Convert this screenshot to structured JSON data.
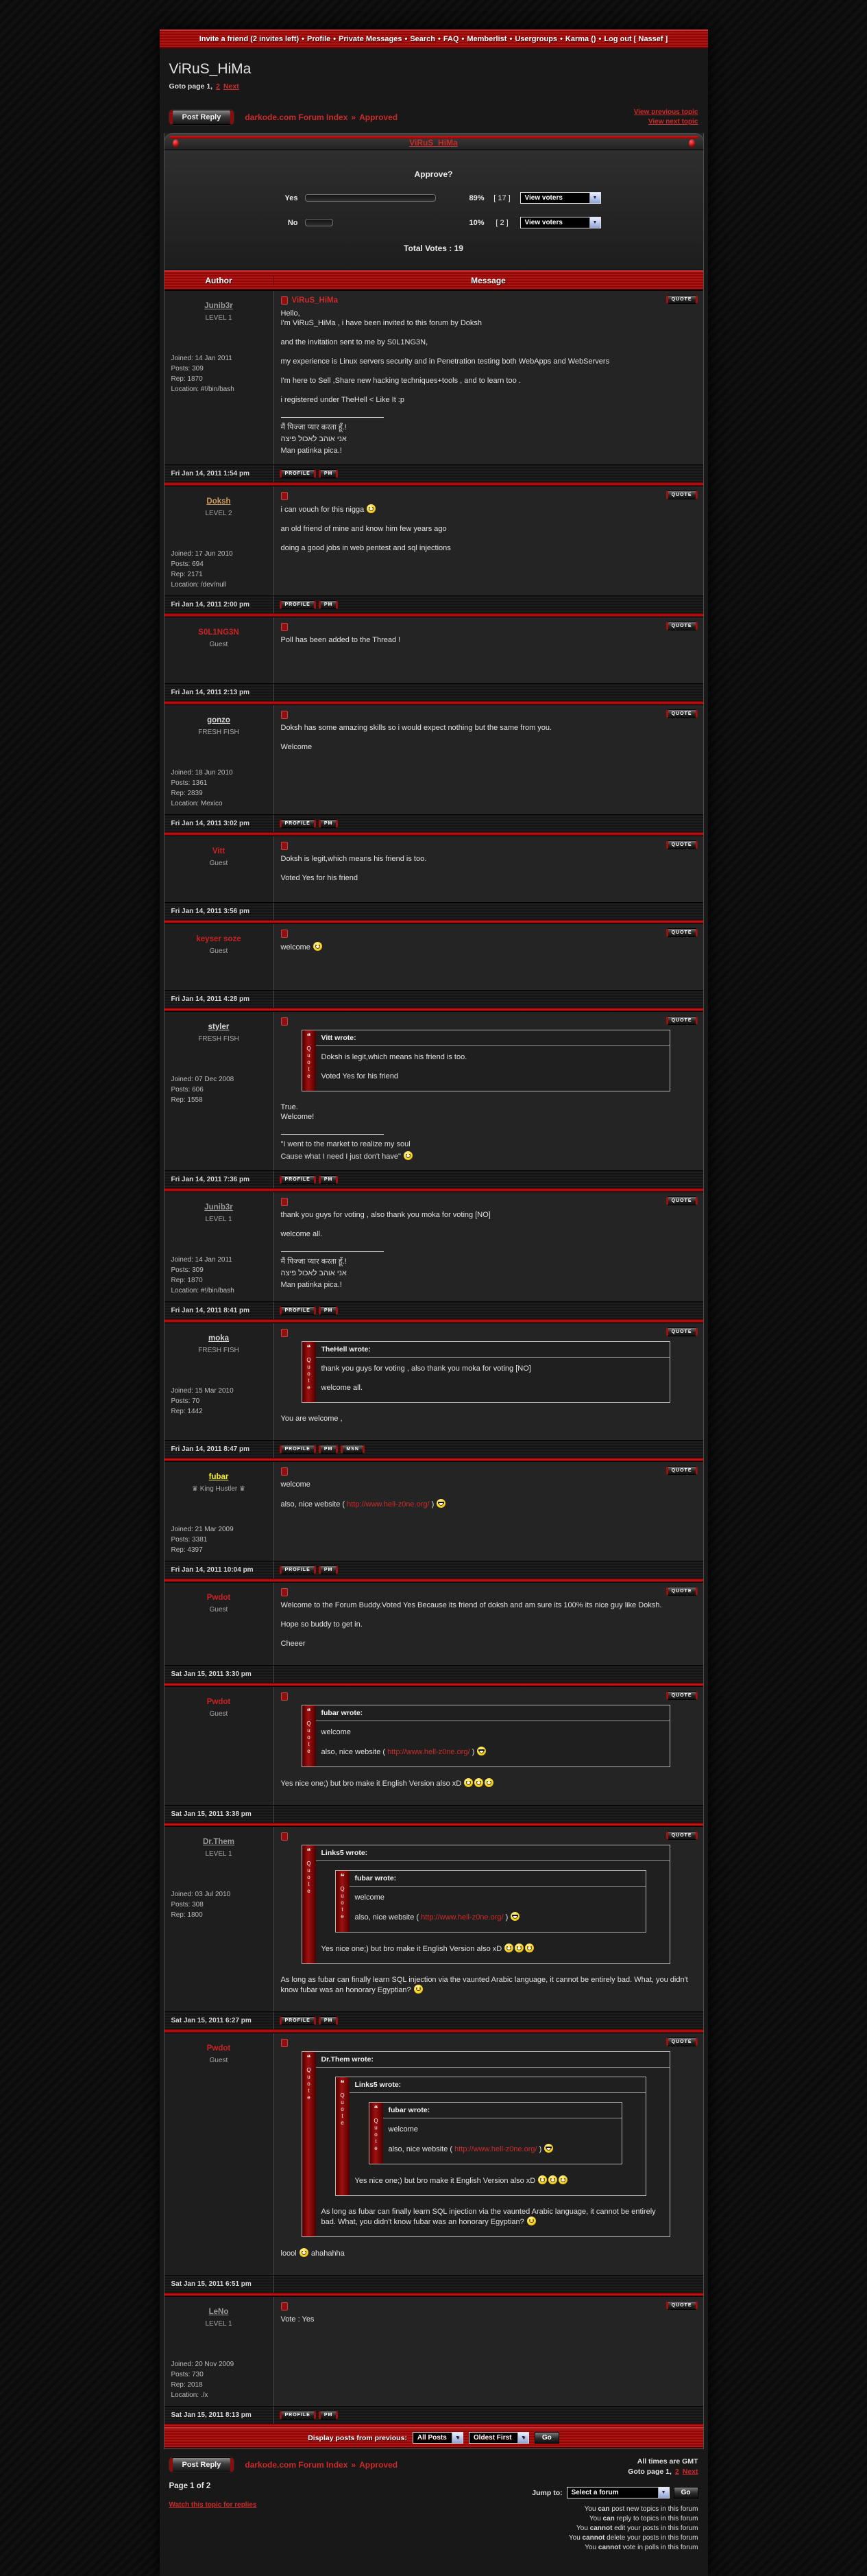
{
  "topnav": {
    "items": [
      "Invite a friend (2 invites left)",
      "Profile",
      "Private Messages",
      "Search",
      "FAQ",
      "Memberlist",
      "Usergroups",
      "Karma ()",
      "Log out [ Nassef ]"
    ],
    "separator": "•"
  },
  "page": {
    "title": "ViRuS_HiMa",
    "goto": {
      "label": "Goto page 1,",
      "links": [
        "2",
        "Next"
      ]
    }
  },
  "toolbar": {
    "post_reply": "Post Reply",
    "breadcrumb": [
      "darkode.com Forum Index",
      "Approved"
    ],
    "breadcrumb_separator": "»",
    "view_prev": "View previous topic",
    "view_next": "View next topic"
  },
  "topic": {
    "title": "ViRuS_HiMa"
  },
  "poll": {
    "question": "Approve?",
    "view_voters": "View voters",
    "total": "Total Votes : 19",
    "options": [
      {
        "label": "Yes",
        "pct": 89,
        "votes": 17
      },
      {
        "label": "No",
        "pct": 10,
        "votes": 2
      }
    ]
  },
  "table": {
    "author_header": "Author",
    "message_header": "Message"
  },
  "buttons": {
    "quote": "QUOTE",
    "profile": "PROFILE",
    "pm": "PM",
    "msn": "MSN"
  },
  "colors": {
    "accent_red": "#cc2b2b",
    "bar_red": "#a01010",
    "member_gray": "#9a9a9a",
    "guest_red": "#cc2222",
    "doksh_tan": "#c99a5b",
    "fubar_yellow": "#f5ef2f",
    "light_member": "#d8d8d8"
  },
  "posts": [
    {
      "author": {
        "name": "Junib3r",
        "color": "#9a9a9a",
        "underline": true,
        "rank": "LEVEL 1",
        "stats": [
          "Joined: 14 Jan 2011",
          "Posts: 309",
          "Rep: 1870",
          "Location: #!/bin/bash"
        ]
      },
      "subject": "ViRuS_HiMa",
      "content": [
        {
          "t": "p",
          "tight": true,
          "s": [
            {
              "x": "Hello,"
            }
          ]
        },
        {
          "t": "p",
          "s": [
            {
              "x": "I'm ViRuS_HiMa , i have been invited to this forum by Doksh"
            }
          ]
        },
        {
          "t": "p",
          "s": [
            {
              "x": "and the invitation sent to me by S0L1NG3N,"
            }
          ]
        },
        {
          "t": "p",
          "s": [
            {
              "x": "my experience is Linux servers security and in Penetration testing both WebApps and WebServers"
            }
          ]
        },
        {
          "t": "p",
          "s": [
            {
              "x": "I'm here to Sell ,Share new hacking techniques+tools , and to learn too ."
            }
          ]
        },
        {
          "t": "p",
          "s": [
            {
              "x": "i registered under TheHell < Like It :p"
            }
          ]
        },
        {
          "t": "sig",
          "lines": [
            [
              {
                "x": "मैं पिज्जा प्यार करता हूँ.!"
              }
            ],
            [
              {
                "x": "אני אוהב לאכול פיצה"
              }
            ],
            [
              {
                "x": "Man patinka pica.!"
              }
            ]
          ]
        }
      ],
      "time": "Fri Jan 14, 2011 1:54 pm",
      "buttons": [
        "profile",
        "pm"
      ]
    },
    {
      "author": {
        "name": "Doksh",
        "color": "#c99a5b",
        "underline": true,
        "rank": "LEVEL 2",
        "stats": [
          "Joined: 17 Jun 2010",
          "Posts: 694",
          "Rep: 2171",
          "Location: /dev/null"
        ]
      },
      "content": [
        {
          "t": "p",
          "s": [
            {
              "x": "i can vouch for this nigga "
            },
            {
              "s": "grin"
            }
          ]
        },
        {
          "t": "p",
          "s": [
            {
              "x": "an old friend of mine and know him few years ago"
            }
          ]
        },
        {
          "t": "p",
          "s": [
            {
              "x": "doing a good jobs in web pentest and sql injections"
            }
          ]
        }
      ],
      "time": "Fri Jan 14, 2011 2:00 pm",
      "buttons": [
        "profile",
        "pm"
      ]
    },
    {
      "author": {
        "name": "S0L1NG3N",
        "color": "#cc2222",
        "underline": false,
        "rank": "Guest"
      },
      "content": [
        {
          "t": "p",
          "s": [
            {
              "x": "Poll has been added to the Thread !"
            }
          ]
        }
      ],
      "time": "Fri Jan 14, 2011 2:13 pm",
      "buttons": []
    },
    {
      "author": {
        "name": "gonzo",
        "color": "#d8d8d8",
        "underline": true,
        "rank": "FRESH FISH",
        "stats": [
          "Joined: 18 Jun 2010",
          "Posts: 1361",
          "Rep: 2839",
          "Location: Mexico"
        ]
      },
      "content": [
        {
          "t": "p",
          "s": [
            {
              "x": "Doksh has some amazing skills so i would expect nothing but the same from you."
            }
          ]
        },
        {
          "t": "p",
          "s": [
            {
              "x": "Welcome"
            }
          ]
        }
      ],
      "time": "Fri Jan 14, 2011 3:02 pm",
      "buttons": [
        "profile",
        "pm"
      ]
    },
    {
      "author": {
        "name": "Vitt",
        "color": "#cc2222",
        "underline": false,
        "rank": "Guest"
      },
      "content": [
        {
          "t": "p",
          "s": [
            {
              "x": "Doksh is legit,which means his friend is too."
            }
          ]
        },
        {
          "t": "p",
          "s": [
            {
              "x": "Voted Yes for his friend"
            }
          ]
        }
      ],
      "time": "Fri Jan 14, 2011 3:56 pm",
      "buttons": []
    },
    {
      "author": {
        "name": "keyser soze",
        "color": "#cc2222",
        "underline": false,
        "rank": "Guest"
      },
      "content": [
        {
          "t": "p",
          "s": [
            {
              "x": "welcome "
            },
            {
              "s": "grin"
            }
          ]
        }
      ],
      "time": "Fri Jan 14, 2011 4:28 pm",
      "buttons": []
    },
    {
      "author": {
        "name": "styler",
        "color": "#d8d8d8",
        "underline": true,
        "rank": "FRESH FISH",
        "stats": [
          "Joined: 07 Dec 2008",
          "Posts: 606",
          "Rep: 1558"
        ]
      },
      "content": [
        {
          "t": "q",
          "title": "Vitt wrote:",
          "body": [
            {
              "t": "p",
              "s": [
                {
                  "x": "Doksh is legit,which means his friend is too."
                }
              ]
            },
            {
              "t": "p",
              "s": [
                {
                  "x": "Voted Yes for his friend"
                }
              ]
            }
          ]
        },
        {
          "t": "p",
          "tight": true,
          "s": [
            {
              "x": "True."
            }
          ]
        },
        {
          "t": "p",
          "s": [
            {
              "x": "Welcome!"
            }
          ]
        },
        {
          "t": "sig",
          "lines": [
            [
              {
                "x": "\"I went to the market to realize my soul"
              }
            ],
            [
              {
                "x": "Cause what I need I just don't have\" "
              },
              {
                "s": "lol"
              }
            ]
          ]
        }
      ],
      "time": "Fri Jan 14, 2011 7:36 pm",
      "buttons": [
        "profile",
        "pm"
      ]
    },
    {
      "author": {
        "name": "Junib3r",
        "color": "#9a9a9a",
        "underline": true,
        "rank": "LEVEL 1",
        "stats": [
          "Joined: 14 Jan 2011",
          "Posts: 309",
          "Rep: 1870",
          "Location: #!/bin/bash"
        ]
      },
      "content": [
        {
          "t": "p",
          "s": [
            {
              "x": "thank you guys for voting , also thank you moka for voting [NO]"
            }
          ]
        },
        {
          "t": "p",
          "s": [
            {
              "x": "welcome all."
            }
          ]
        },
        {
          "t": "sig",
          "lines": [
            [
              {
                "x": "मैं पिज्जा प्यार करता हूँ.!"
              }
            ],
            [
              {
                "x": "אני אוהב לאכול פיצה"
              }
            ],
            [
              {
                "x": "Man patinka pica.!"
              }
            ]
          ]
        }
      ],
      "time": "Fri Jan 14, 2011 8:41 pm",
      "buttons": [
        "profile",
        "pm"
      ]
    },
    {
      "author": {
        "name": "moka",
        "color": "#d8d8d8",
        "underline": true,
        "rank": "FRESH FISH",
        "stats": [
          "Joined: 15 Mar 2010",
          "Posts: 70",
          "Rep: 1442"
        ]
      },
      "content": [
        {
          "t": "q",
          "title": "TheHell wrote:",
          "body": [
            {
              "t": "p",
              "s": [
                {
                  "x": "thank you guys for voting , also thank you moka for voting [NO]"
                }
              ]
            },
            {
              "t": "p",
              "s": [
                {
                  "x": "welcome all."
                }
              ]
            }
          ]
        },
        {
          "t": "p",
          "s": [
            {
              "x": "You are welcome ,"
            }
          ]
        }
      ],
      "time": "Fri Jan 14, 2011 8:47 pm",
      "buttons": [
        "profile",
        "pm",
        "msn"
      ]
    },
    {
      "author": {
        "name": "fubar",
        "color": "#f5ef2f",
        "underline": true,
        "rank": "♛ King Hustler ♛",
        "stats": [
          "Joined: 21 Mar 2009",
          "Posts: 3381",
          "Rep: 4397"
        ]
      },
      "content": [
        {
          "t": "p",
          "s": [
            {
              "x": "welcome"
            }
          ]
        },
        {
          "t": "p",
          "s": [
            {
              "x": "also, nice website ( "
            },
            {
              "l": "http://www.hell-z0ne.org/"
            },
            {
              "x": " ) "
            },
            {
              "s": "cool"
            }
          ]
        }
      ],
      "time": "Fri Jan 14, 2011 10:04 pm",
      "buttons": [
        "profile",
        "pm"
      ]
    },
    {
      "author": {
        "name": "Pwdot",
        "color": "#cc2222",
        "underline": false,
        "rank": "Guest"
      },
      "content": [
        {
          "t": "p",
          "s": [
            {
              "x": "Welcome to the Forum Buddy.Voted Yes Because its friend of doksh and am sure its 100% its nice guy like Doksh."
            }
          ]
        },
        {
          "t": "p",
          "s": [
            {
              "x": "Hope so buddy to get in."
            }
          ]
        },
        {
          "t": "p",
          "s": [
            {
              "x": "Cheeer"
            }
          ]
        }
      ],
      "time": "Sat Jan 15, 2011 3:30 pm",
      "buttons": []
    },
    {
      "author": {
        "name": "Pwdot",
        "color": "#cc2222",
        "underline": false,
        "rank": "Guest"
      },
      "content": [
        {
          "t": "q",
          "title": "fubar wrote:",
          "body": [
            {
              "t": "p",
              "s": [
                {
                  "x": "welcome"
                }
              ]
            },
            {
              "t": "p",
              "s": [
                {
                  "x": "also, nice website ( "
                },
                {
                  "l": "http://www.hell-z0ne.org/"
                },
                {
                  "x": " ) "
                },
                {
                  "s": "cool"
                }
              ]
            }
          ]
        },
        {
          "t": "p",
          "s": [
            {
              "x": "Yes nice one;) but bro make it English Version also xD "
            },
            {
              "s": "lol"
            },
            {
              "s": "lol"
            },
            {
              "s": "lol"
            }
          ]
        }
      ],
      "time": "Sat Jan 15, 2011 3:38 pm",
      "buttons": []
    },
    {
      "author": {
        "name": "Dr.Them",
        "color": "#9a9a9a",
        "underline": true,
        "rank": "LEVEL 1",
        "stats": [
          "Joined: 03 Jul 2010",
          "Posts: 308",
          "Rep: 1800"
        ]
      },
      "content": [
        {
          "t": "q",
          "title": "Links5 wrote:",
          "body": [
            {
              "t": "q",
              "title": "fubar wrote:",
              "body": [
                {
                  "t": "p",
                  "s": [
                    {
                      "x": "welcome"
                    }
                  ]
                },
                {
                  "t": "p",
                  "s": [
                    {
                      "x": "also, nice website ( "
                    },
                    {
                      "l": "http://www.hell-z0ne.org/"
                    },
                    {
                      "x": " ) "
                    },
                    {
                      "s": "cool"
                    }
                  ]
                }
              ]
            },
            {
              "t": "p",
              "s": [
                {
                  "x": "Yes nice one;) but bro make it English Version also xD "
                },
                {
                  "s": "lol"
                },
                {
                  "s": "lol"
                },
                {
                  "s": "lol"
                }
              ]
            }
          ]
        },
        {
          "t": "p",
          "s": [
            {
              "x": "As long as fubar can finally learn SQL injection via the vaunted Arabic language, it cannot be entirely bad. What, you didn't know fubar was an honorary Egyptian? "
            },
            {
              "s": "smile"
            }
          ]
        }
      ],
      "time": "Sat Jan 15, 2011 6:27 pm",
      "buttons": [
        "profile",
        "pm"
      ]
    },
    {
      "author": {
        "name": "Pwdot",
        "color": "#cc2222",
        "underline": false,
        "rank": "Guest"
      },
      "content": [
        {
          "t": "q",
          "title": "Dr.Them wrote:",
          "body": [
            {
              "t": "q",
              "title": "Links5 wrote:",
              "body": [
                {
                  "t": "q",
                  "title": "fubar wrote:",
                  "body": [
                    {
                      "t": "p",
                      "s": [
                        {
                          "x": "welcome"
                        }
                      ]
                    },
                    {
                      "t": "p",
                      "s": [
                        {
                          "x": "also, nice website ( "
                        },
                        {
                          "l": "http://www.hell-z0ne.org/"
                        },
                        {
                          "x": " ) "
                        },
                        {
                          "s": "cool"
                        }
                      ]
                    }
                  ]
                },
                {
                  "t": "p",
                  "s": [
                    {
                      "x": "Yes nice one;) but bro make it English Version also xD "
                    },
                    {
                      "s": "lol"
                    },
                    {
                      "s": "lol"
                    },
                    {
                      "s": "lol"
                    }
                  ]
                }
              ]
            },
            {
              "t": "p",
              "s": [
                {
                  "x": "As long as fubar can finally learn SQL injection via the vaunted Arabic language, it cannot be entirely bad. What, you didn't know fubar was an honorary Egyptian? "
                },
                {
                  "s": "smile"
                }
              ]
            }
          ]
        },
        {
          "t": "p",
          "s": [
            {
              "x": "loool "
            },
            {
              "s": "lol"
            },
            {
              "x": " ahahahha"
            }
          ]
        }
      ],
      "time": "Sat Jan 15, 2011 6:51 pm",
      "buttons": []
    },
    {
      "author": {
        "name": "LeNo",
        "color": "#9a9a9a",
        "underline": true,
        "rank": "LEVEL 1",
        "stats": [
          "Joined: 20 Nov 2009",
          "Posts: 730",
          "Rep: 2018",
          "Location: ./x"
        ]
      },
      "content": [
        {
          "t": "p",
          "s": [
            {
              "x": "Vote : Yes"
            }
          ]
        }
      ],
      "time": "Sat Jan 15, 2011 8:13 pm",
      "buttons": [
        "profile",
        "pm"
      ]
    }
  ],
  "bottom_bar": {
    "label": "Display posts from previous:",
    "select1": "All Posts",
    "select2": "Oldest First",
    "go": "Go"
  },
  "footer": {
    "post_reply": "Post Reply",
    "breadcrumb": [
      "darkode.com Forum Index",
      "Approved"
    ],
    "all_times": "All times are GMT",
    "goto": {
      "label": "Goto page 1,",
      "links": [
        "2",
        "Next"
      ]
    },
    "page_of": "Page 1 of 2",
    "watch": "Watch this topic for replies",
    "jump_label": "Jump to:",
    "jump_select": "Select a forum",
    "go": "Go",
    "perms": [
      {
        "pre": "You",
        "word": "can",
        "rest": "post new topics in this forum"
      },
      {
        "pre": "You",
        "word": "can",
        "rest": "reply to topics in this forum"
      },
      {
        "pre": "You",
        "word": "cannot",
        "rest": "edit your posts in this forum"
      },
      {
        "pre": "You",
        "word": "cannot",
        "rest": "delete your posts in this forum"
      },
      {
        "pre": "You",
        "word": "cannot",
        "rest": "vote in polls in this forum"
      }
    ]
  }
}
